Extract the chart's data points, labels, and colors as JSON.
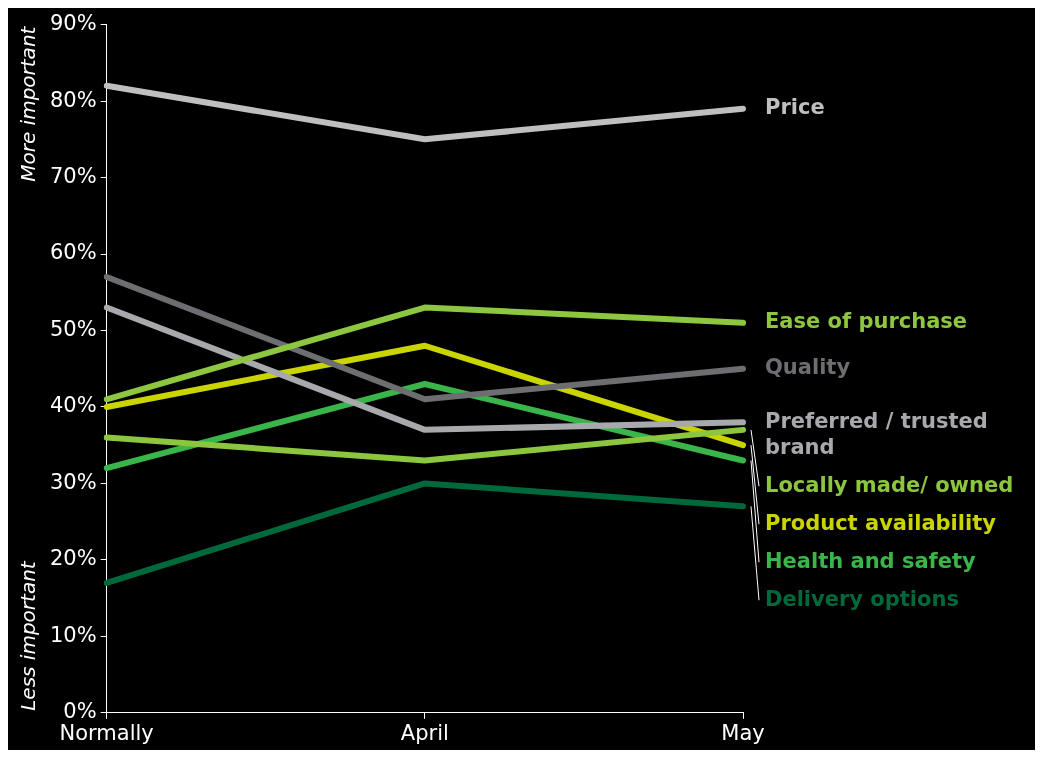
{
  "chart_data": {
    "type": "line",
    "ylabel": "More important",
    "annotations": [
      "Less important"
    ],
    "categories": [
      "Normally",
      "April",
      "May"
    ],
    "series": [
      {
        "name": "Price",
        "color": "#bfbfbf",
        "values": [
          82,
          75,
          79
        ]
      },
      {
        "name": "Ease of purchase",
        "color": "#8dc63f",
        "values": [
          41,
          53,
          51
        ]
      },
      {
        "name": "Quality",
        "color": "#6d6e71",
        "values": [
          57,
          41,
          45
        ]
      },
      {
        "name": "Preferred / trusted brand",
        "color": "#a7a9ac",
        "values": [
          53,
          37,
          38
        ]
      },
      {
        "name": "Locally made/ owned",
        "color": "#8cc63e",
        "values": [
          36,
          33,
          37
        ]
      },
      {
        "name": "Product availability",
        "color": "#c9d400",
        "values": [
          40,
          48,
          35
        ]
      },
      {
        "name": "Health and safety",
        "color": "#39b54a",
        "values": [
          32,
          43,
          33
        ]
      },
      {
        "name": "Delivery options",
        "color": "#00693c",
        "values": [
          17,
          30,
          27
        ]
      }
    ],
    "ylim": [
      0,
      90
    ],
    "yticks": [
      {
        "value": 0,
        "label": "0%"
      },
      {
        "value": 10,
        "label": "10%"
      },
      {
        "value": 20,
        "label": "20%"
      },
      {
        "value": 30,
        "label": "30%"
      },
      {
        "value": 40,
        "label": "40%"
      },
      {
        "value": 50,
        "label": "50%"
      },
      {
        "value": 60,
        "label": "60%"
      },
      {
        "value": 70,
        "label": "70%"
      },
      {
        "value": 80,
        "label": "80%"
      },
      {
        "value": 90,
        "label": "90%"
      }
    ],
    "grid": false,
    "legend": false,
    "marker": "none",
    "line_style": "solid"
  }
}
